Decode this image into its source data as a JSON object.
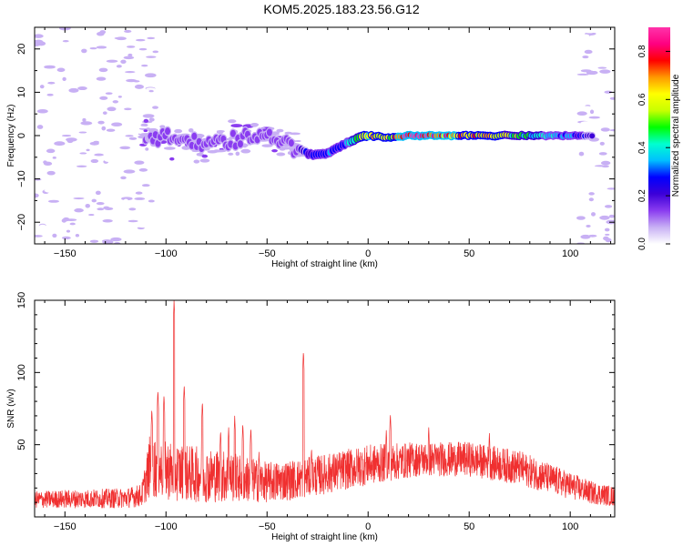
{
  "title": "KOM5.2025.183.23.56.G12",
  "chart_data": [
    {
      "type": "heatmap",
      "xlabel": "Height of straight line (km)",
      "ylabel": "Frequency (Hz)",
      "xlim": [
        -165,
        122
      ],
      "ylim": [
        -25,
        25
      ],
      "x_ticks": [
        -150,
        -100,
        -50,
        0,
        50,
        100
      ],
      "y_ticks": [
        -20,
        -10,
        0,
        10,
        20
      ],
      "colorbar": {
        "label": "Normalized spectral amplitude",
        "range": [
          0,
          0.9
        ],
        "ticks": [
          0.0,
          0.2,
          0.4,
          0.6,
          0.8
        ],
        "colors": [
          "#ffffff",
          "#c8b0f4",
          "#8a3cf0",
          "#3c00d8",
          "#0000ff",
          "#00bfff",
          "#00ffd0",
          "#00ff00",
          "#c8ff00",
          "#ffff00",
          "#ff9900",
          "#ff0000",
          "#ff0080",
          "#ff33aa"
        ]
      },
      "ridge": [
        {
          "x": -110,
          "f": 0.0,
          "amp": 0.12
        },
        {
          "x": -95,
          "f": -1.0,
          "amp": 0.14
        },
        {
          "x": -80,
          "f": -2.0,
          "amp": 0.15
        },
        {
          "x": -65,
          "f": -1.0,
          "amp": 0.15
        },
        {
          "x": -50,
          "f": 0.5,
          "amp": 0.14
        },
        {
          "x": -40,
          "f": -2.0,
          "amp": 0.15
        },
        {
          "x": -35,
          "f": -3.0,
          "amp": 0.18
        },
        {
          "x": -28,
          "f": -4.5,
          "amp": 0.25
        },
        {
          "x": -20,
          "f": -4.0,
          "amp": 0.28
        },
        {
          "x": -12,
          "f": -2.0,
          "amp": 0.3
        },
        {
          "x": -5,
          "f": -0.5,
          "amp": 0.45
        },
        {
          "x": 0,
          "f": 0.0,
          "amp": 0.7
        },
        {
          "x": 10,
          "f": -0.5,
          "amp": 0.55
        },
        {
          "x": 20,
          "f": 0.0,
          "amp": 0.85
        },
        {
          "x": 40,
          "f": 0.0,
          "amp": 0.72
        },
        {
          "x": 60,
          "f": 0.0,
          "amp": 0.6
        },
        {
          "x": 80,
          "f": 0.0,
          "amp": 0.42
        },
        {
          "x": 100,
          "f": 0.0,
          "amp": 0.3
        },
        {
          "x": 110,
          "f": 0.0,
          "amp": 0.2
        }
      ]
    },
    {
      "type": "line",
      "xlabel": "Height of straight line (km)",
      "ylabel": "SNR (v/v)",
      "xlim": [
        -165,
        122
      ],
      "ylim": [
        0,
        150
      ],
      "x_ticks": [
        -150,
        -100,
        -50,
        0,
        50,
        100
      ],
      "y_ticks": [
        50,
        100,
        150
      ],
      "color": "#f03030",
      "envelope": [
        {
          "x": -165,
          "mean": 12,
          "spread": 6
        },
        {
          "x": -120,
          "mean": 13,
          "spread": 7
        },
        {
          "x": -112,
          "mean": 15,
          "spread": 8
        },
        {
          "x": -108,
          "mean": 35,
          "spread": 22
        },
        {
          "x": -90,
          "mean": 30,
          "spread": 20
        },
        {
          "x": -70,
          "mean": 28,
          "spread": 18
        },
        {
          "x": -50,
          "mean": 24,
          "spread": 14
        },
        {
          "x": -35,
          "mean": 26,
          "spread": 14
        },
        {
          "x": -20,
          "mean": 30,
          "spread": 14
        },
        {
          "x": 0,
          "mean": 36,
          "spread": 14
        },
        {
          "x": 25,
          "mean": 40,
          "spread": 12
        },
        {
          "x": 50,
          "mean": 40,
          "spread": 12
        },
        {
          "x": 75,
          "mean": 34,
          "spread": 12
        },
        {
          "x": 95,
          "mean": 24,
          "spread": 10
        },
        {
          "x": 110,
          "mean": 17,
          "spread": 8
        },
        {
          "x": 122,
          "mean": 14,
          "spread": 7
        }
      ],
      "peaks": [
        {
          "x": -107,
          "y": 75
        },
        {
          "x": -104,
          "y": 88
        },
        {
          "x": -101,
          "y": 85
        },
        {
          "x": -96,
          "y": 150
        },
        {
          "x": -91,
          "y": 92
        },
        {
          "x": -82,
          "y": 80
        },
        {
          "x": -73,
          "y": 60
        },
        {
          "x": -69,
          "y": 62
        },
        {
          "x": -66,
          "y": 70
        },
        {
          "x": -62,
          "y": 65
        },
        {
          "x": -58,
          "y": 62
        },
        {
          "x": -54,
          "y": 45
        },
        {
          "x": -32,
          "y": 115
        },
        {
          "x": -28,
          "y": 48
        },
        {
          "x": 9,
          "y": 60
        },
        {
          "x": 11,
          "y": 72
        },
        {
          "x": 30,
          "y": 62
        },
        {
          "x": 60,
          "y": 58
        }
      ]
    }
  ]
}
